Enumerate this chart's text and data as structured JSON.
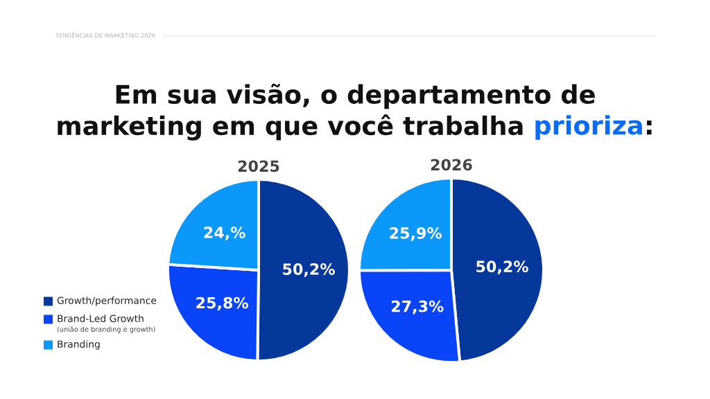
{
  "chart_data": [
    {
      "type": "other",
      "title": "Em sua visão, o departamento de\nmarketing em que você trabalha prioriza:",
      "annotations": [
        "TENDÊNCIAS DE MARKETING 2026"
      ]
    },
    {
      "type": "pie",
      "title": "2025",
      "categories": [
        "Growth/performance",
        "Brand-Led Growth\n(união de branding e growth)",
        "Branding"
      ],
      "values": [
        50.2,
        25.8,
        24
      ],
      "colors": [
        "#06379a",
        "#0a44f7",
        "#0c98fb"
      ],
      "value_labels": [
        "50,2%",
        "25,8%",
        "24,%"
      ],
      "legend": "bottom left"
    },
    {
      "type": "pie",
      "title": "2026",
      "categories": [
        null,
        null,
        null
      ],
      "values": [
        50.2,
        27.3,
        25.9
      ],
      "colors": [
        "#06379a",
        "#0a44f7",
        "#0c98fb"
      ],
      "value_labels": [
        "50,2%",
        "27,3%",
        "25,9%"
      ]
    }
  ]
}
